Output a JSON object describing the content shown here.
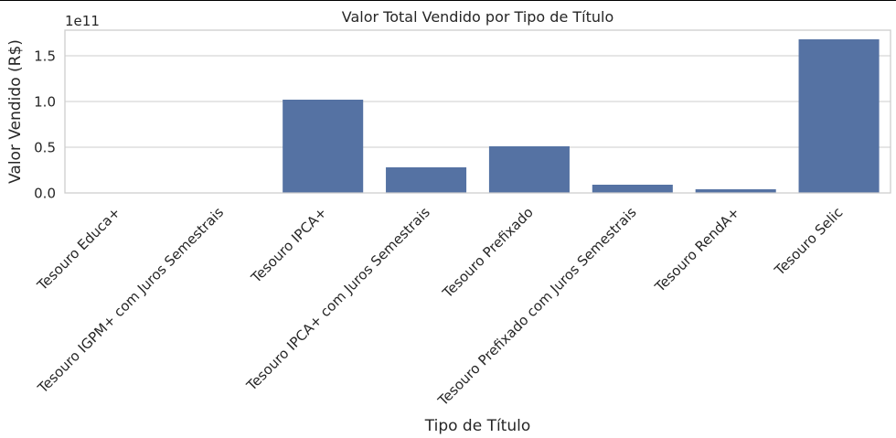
{
  "chart_data": {
    "type": "bar",
    "title": "Valor Total Vendido por Tipo de Título",
    "xlabel": "Tipo de Título",
    "ylabel": "Valor Vendido (R$)",
    "y_offset_label": "1e11",
    "categories": [
      "Tesouro Educa+",
      "Tesouro IGPM+ com Juros Semestrais",
      "Tesouro IPCA+",
      "Tesouro IPCA+ com Juros Semestrais",
      "Tesouro Prefixado",
      "Tesouro Prefixado com Juros Semestrais",
      "Tesouro RendA+",
      "Tesouro Selic"
    ],
    "values": [
      0.0006,
      0.0,
      1.02,
      0.28,
      0.51,
      0.09,
      0.04,
      1.68
    ],
    "value_scale": 100000000000.0,
    "ylim": [
      0,
      1.78
    ],
    "yticks": [
      0.0,
      0.5,
      1.0,
      1.5
    ],
    "ytick_labels": [
      "0.0",
      "0.5",
      "1.0",
      "1.5"
    ],
    "grid": true,
    "colors": {
      "bar": "#5572a3",
      "grid": "#cccccc",
      "spine": "#cccccc"
    }
  }
}
